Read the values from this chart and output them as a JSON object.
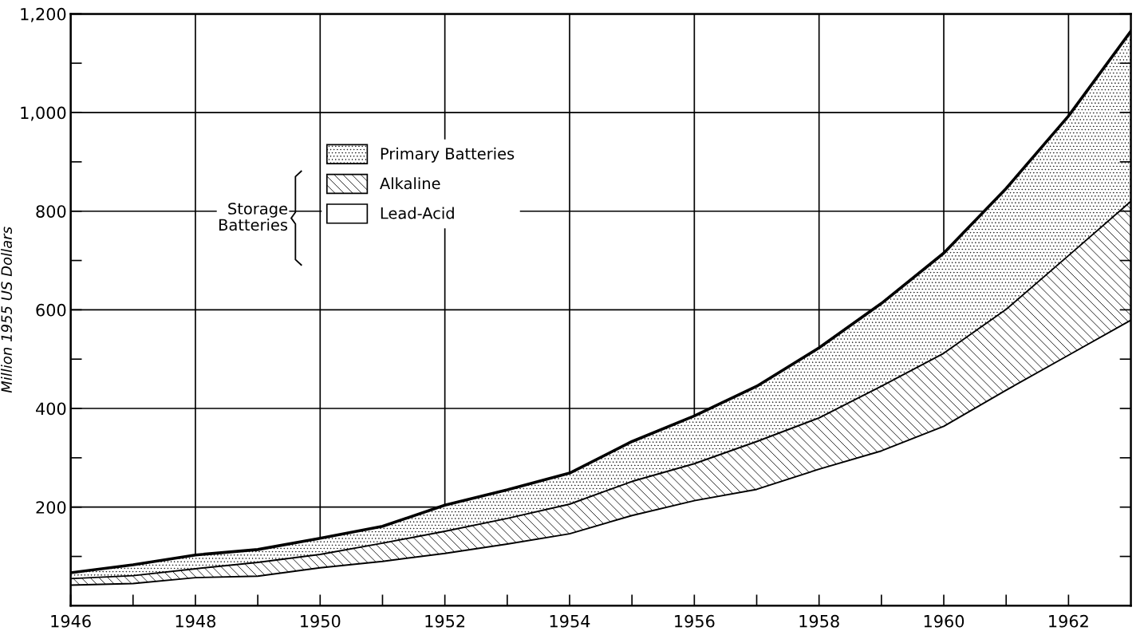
{
  "chart_data": {
    "type": "area",
    "stacked": true,
    "x": [
      1946,
      1947,
      1948,
      1949,
      1950,
      1951,
      1952,
      1953,
      1954,
      1955,
      1956,
      1957,
      1958,
      1959,
      1960,
      1961,
      1962,
      1963
    ],
    "series": [
      {
        "name": "Lead-Acid",
        "color": "#000000",
        "values": [
          42,
          45,
          57,
          60,
          77,
          90,
          106,
          125,
          146,
          183,
          213,
          236,
          277,
          314,
          364,
          437,
          508,
          579
        ]
      },
      {
        "name": "Alkaline",
        "color": "#000000",
        "values": [
          13,
          16,
          18,
          28,
          27,
          37,
          45,
          52,
          60,
          69,
          75,
          97,
          104,
          131,
          148,
          164,
          202,
          241
        ]
      },
      {
        "name": "Primary Batteries",
        "color": "#000000",
        "values": [
          12,
          22,
          28,
          26,
          33,
          34,
          53,
          58,
          63,
          81,
          97,
          112,
          142,
          168,
          203,
          245,
          283,
          345
        ]
      }
    ],
    "ylabel": "Million 1955 US Dollars",
    "annotations": [
      "Storage Batteries"
    ],
    "xlim": [
      1946,
      1963
    ],
    "ylim": [
      0,
      1200
    ],
    "xticks": [
      1946,
      {
        "value": 1947,
        "label": null
      },
      1948,
      {
        "value": 1949,
        "label": null
      },
      1950,
      {
        "value": 1951,
        "label": null
      },
      1952,
      {
        "value": 1953,
        "label": null
      },
      1954,
      {
        "value": 1955,
        "label": null
      },
      1956,
      {
        "value": 1957,
        "label": null
      },
      1958,
      {
        "value": 1959,
        "label": null
      },
      1960,
      {
        "value": 1961,
        "label": null
      },
      1962
    ],
    "yticks": [
      {
        "value": 100,
        "label": null
      },
      200,
      {
        "value": 300,
        "label": null
      },
      400,
      {
        "value": 500,
        "label": null
      },
      600,
      {
        "value": 700,
        "label": null
      },
      800,
      {
        "value": 900,
        "label": null
      },
      {
        "value": 1000,
        "label": "1,000"
      },
      {
        "value": 1100,
        "label": null
      },
      {
        "value": 1200,
        "label": "1,200"
      }
    ],
    "grid": true,
    "legend": "top left"
  }
}
